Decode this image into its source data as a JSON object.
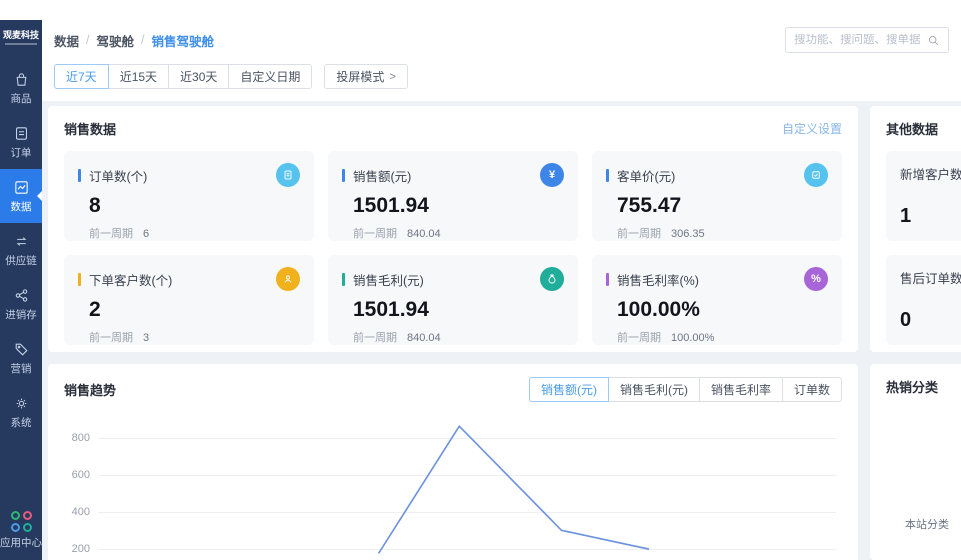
{
  "sidebar": {
    "logo": "观麦科技",
    "items": [
      {
        "label": "商品"
      },
      {
        "label": "订单"
      },
      {
        "label": "数据"
      },
      {
        "label": "供应链"
      },
      {
        "label": "进销存"
      },
      {
        "label": "营销"
      },
      {
        "label": "系统"
      }
    ],
    "app_center_label": "应用中心"
  },
  "header": {
    "breadcrumb": [
      "数据",
      "驾驶舱",
      "销售驾驶舱"
    ],
    "breadcrumb_sep": "/",
    "search_placeholder": "搜功能、搜问题、搜单据"
  },
  "filters": {
    "ranges": [
      "近7天",
      "近15天",
      "近30天",
      "自定义日期"
    ],
    "selected": "近7天",
    "cast_button": "投屏模式",
    "chevron": ">"
  },
  "sales": {
    "title": "销售数据",
    "settings_link": "自定义设置",
    "prev_label": "前一周期",
    "cards": [
      {
        "title": "订单数(个)",
        "value": "8",
        "prev": "6",
        "accent": "#3d86e8",
        "icon_bg": "#56c2ee"
      },
      {
        "title": "销售额(元)",
        "value": "1501.94",
        "prev": "840.04",
        "accent": "#3d86e8",
        "icon_bg": "#3d86e8",
        "glyph": "¥"
      },
      {
        "title": "客单价(元)",
        "value": "755.47",
        "prev": "306.35",
        "accent": "#3d86e8",
        "icon_bg": "#56c2ee"
      },
      {
        "title": "下单客户数(个)",
        "value": "2",
        "prev": "3",
        "accent": "#f0b11c",
        "icon_bg": "#f0b11c"
      },
      {
        "title": "销售毛利(元)",
        "value": "1501.94",
        "prev": "840.04",
        "accent": "#20ad99",
        "icon_bg": "#20ad99"
      },
      {
        "title": "销售毛利率(%)",
        "value": "100.00%",
        "prev": "100.00%",
        "accent": "#a765d8",
        "icon_bg": "#a765d8",
        "glyph": "%"
      }
    ]
  },
  "other": {
    "title": "其他数据",
    "cards": [
      {
        "title": "新增客户数(个)",
        "value": "1"
      },
      {
        "title": "售后订单数(个)",
        "value": "0"
      }
    ]
  },
  "trend": {
    "title": "销售趋势",
    "tabs": [
      "销售额(元)",
      "销售毛利(元)",
      "销售毛利率",
      "订单数"
    ],
    "selected_tab": "销售额(元)"
  },
  "hot": {
    "title": "热销分类",
    "footer_note": "本站分类"
  },
  "chart_data": {
    "type": "line",
    "title": "销售趋势",
    "series": [
      {
        "name": "销售额(元)",
        "points": [
          {
            "x": 0.374,
            "value": 180
          },
          {
            "x": 0.484,
            "value": 855
          },
          {
            "x": 0.624,
            "value": 300
          },
          {
            "x": 0.743,
            "value": 200
          }
        ]
      }
    ],
    "ytick_labels": [
      "800",
      "600",
      "400",
      "200"
    ],
    "ylim": [
      150,
      900
    ],
    "grid": true,
    "x_axis_labels_visible": false,
    "legend": "none",
    "line_color": "#6d93de"
  }
}
